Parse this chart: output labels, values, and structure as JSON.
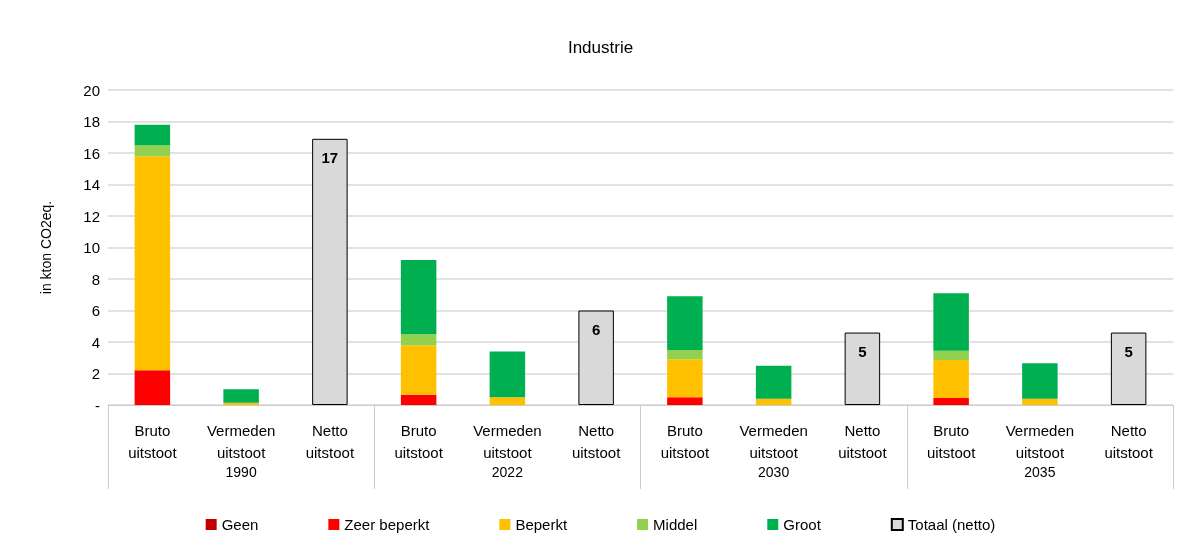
{
  "chart_data": {
    "type": "bar",
    "title": "Industrie",
    "ylabel": "in kton CO2eq.",
    "categories": [
      "Bruto\nuitstoot",
      "Vermeden\nuitstoot",
      "Netto\nuitstoot",
      "Bruto\nuitstoot",
      "Vermeden\nuitstoot",
      "Netto\nuitstoot",
      "Bruto\nuitstoot",
      "Vermeden\nuitstoot",
      "Netto\nuitstoot",
      "Bruto\nuitstoot",
      "Vermeden\nuitstoot",
      "Netto\nuitstoot"
    ],
    "annotations": [
      "1990",
      "2022",
      "2030",
      "2035"
    ],
    "stacked": true,
    "series": [
      {
        "name": "Geen",
        "color": "#c00000",
        "values": [
          null,
          null,
          null,
          null,
          null,
          null,
          null,
          null,
          null,
          null,
          null,
          null
        ]
      },
      {
        "name": "Zeer beperkt",
        "color": "#ff0000",
        "values": [
          2.2,
          null,
          null,
          0.65,
          null,
          null,
          0.5,
          null,
          null,
          0.45,
          null,
          null
        ]
      },
      {
        "name": "Beperkt",
        "color": "#ffc000",
        "values": [
          13.6,
          0.15,
          null,
          3.15,
          0.5,
          null,
          2.4,
          0.4,
          null,
          2.4,
          0.4,
          null
        ]
      },
      {
        "name": "Middel",
        "color": "#92d050",
        "values": [
          0.7,
          null,
          null,
          0.7,
          null,
          null,
          0.6,
          null,
          null,
          0.6,
          null,
          null
        ]
      },
      {
        "name": "Groot",
        "color": "#00b050",
        "values": [
          1.3,
          0.85,
          null,
          4.7,
          2.9,
          null,
          3.4,
          2.1,
          null,
          3.65,
          2.25,
          null
        ]
      },
      {
        "name": "Totaal (netto)",
        "color": "#d9d9d9",
        "values": [
          null,
          null,
          16.9,
          null,
          null,
          6.0,
          null,
          null,
          4.6,
          null,
          null,
          4.6
        ],
        "value_labels": [
          null,
          null,
          "17",
          null,
          null,
          "6",
          null,
          null,
          "5",
          null,
          null,
          "5"
        ]
      }
    ],
    "ylim": [
      0,
      20
    ],
    "yticks": [
      {
        "value": 0,
        "label": "-"
      },
      2,
      4,
      6,
      8,
      10,
      12,
      14,
      16,
      18,
      20
    ],
    "grid": "y",
    "legend": "bottom"
  }
}
